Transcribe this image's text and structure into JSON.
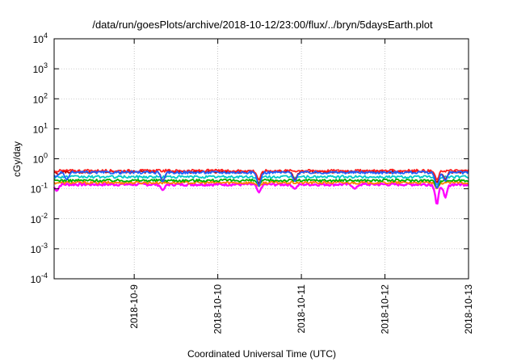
{
  "chart_data": {
    "type": "line",
    "title": "/data/run/goesPlots/archive/2018-10-12/23:00/flux/../bryn/5daysEarth.plot",
    "xlabel": "Coordinated Universal Time (UTC)",
    "ylabel": "cGy/day",
    "yscale": "log",
    "grid": true,
    "ylim": [
      0.0001,
      10000
    ],
    "xlim": [
      "2018-10-08T01:00",
      "2018-10-13T00:00"
    ],
    "yticks": [
      {
        "value": 10000,
        "base": "10",
        "exp": "4"
      },
      {
        "value": 1000,
        "base": "10",
        "exp": "3"
      },
      {
        "value": 100,
        "base": "10",
        "exp": "2"
      },
      {
        "value": 10,
        "base": "10",
        "exp": "1"
      },
      {
        "value": 1,
        "base": "10",
        "exp": "0"
      },
      {
        "value": 0.1,
        "base": "10",
        "exp": "-1"
      },
      {
        "value": 0.01,
        "base": "10",
        "exp": "-2"
      },
      {
        "value": 0.001,
        "base": "10",
        "exp": "-3"
      },
      {
        "value": 0.0001,
        "base": "10",
        "exp": "-4"
      }
    ],
    "xticks": [
      "2018-10-9",
      "2018-10-10",
      "2018-10-11",
      "2018-10-12",
      "2018-10-13"
    ],
    "series": [
      {
        "color": "#ff00ff",
        "base": 0.14,
        "dips": [
          [
            0.03,
            0.085
          ],
          [
            1.3,
            0.09
          ],
          [
            2.45,
            0.075
          ],
          [
            2.88,
            0.1
          ],
          [
            3.6,
            0.1
          ],
          [
            4.58,
            0.028
          ],
          [
            4.68,
            0.05
          ]
        ]
      },
      {
        "color": "#ff8000",
        "base": 0.16,
        "dips": [
          [
            2.45,
            0.12
          ],
          [
            4.58,
            0.1
          ]
        ]
      },
      {
        "color": "#00b000",
        "base": 0.19,
        "dips": [
          [
            2.45,
            0.14
          ],
          [
            4.58,
            0.11
          ]
        ]
      },
      {
        "color": "#00c8c8",
        "base": 0.25,
        "dips": [
          [
            2.45,
            0.16
          ],
          [
            4.58,
            0.14
          ]
        ]
      },
      {
        "color": "#c00000",
        "base": 0.37,
        "dips": [
          [
            0.05,
            0.3
          ],
          [
            1.3,
            0.18
          ],
          [
            2.45,
            0.14
          ],
          [
            2.88,
            0.2
          ],
          [
            4.58,
            0.16
          ],
          [
            4.68,
            0.2
          ]
        ]
      },
      {
        "color": "#ff2020",
        "base": 0.4,
        "dips": [
          [
            2.45,
            0.2
          ],
          [
            4.58,
            0.2
          ]
        ]
      },
      {
        "color": "#2060ff",
        "base": 0.35,
        "dips": [
          [
            0.02,
            0.25
          ],
          [
            0.15,
            0.2
          ],
          [
            1.3,
            0.17
          ],
          [
            2.45,
            0.12
          ],
          [
            2.88,
            0.18
          ],
          [
            4.58,
            0.1
          ],
          [
            4.68,
            0.18
          ]
        ]
      }
    ]
  }
}
